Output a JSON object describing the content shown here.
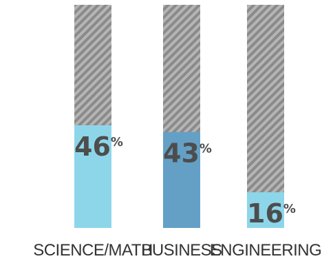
{
  "chart_data": {
    "type": "bar",
    "categories": [
      "SCIENCE/MATH",
      "BUSINESS",
      "ENGINEERING"
    ],
    "values": [
      46,
      43,
      16
    ],
    "value_suffix": "%",
    "ylim": [
      0,
      100
    ],
    "bar_colors": [
      "#8dd6ea",
      "#64a0c6",
      "#8dd6ea"
    ],
    "background_fill": "hatched-gray",
    "hatch_colors": {
      "dark": "#8a8a8a",
      "light": "#b5b5b5"
    },
    "value_label_color": "#4d4d4d",
    "category_label_color": "#333333",
    "legend": "none",
    "grid": false
  }
}
